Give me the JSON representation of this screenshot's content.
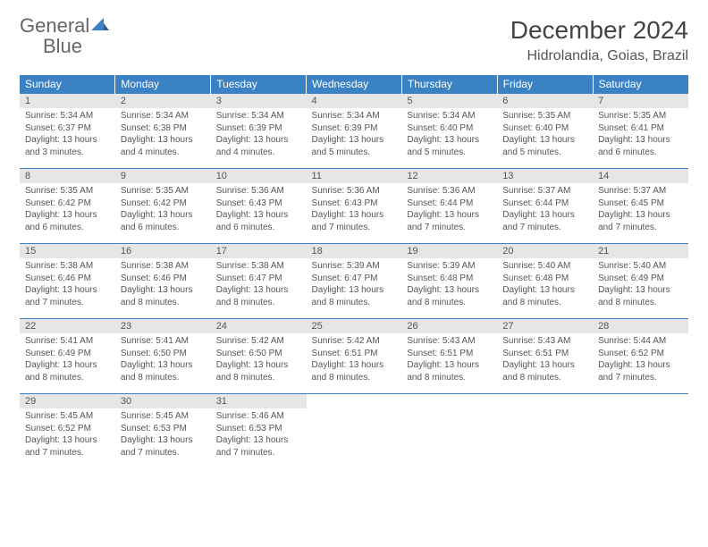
{
  "logo": {
    "text1": "General",
    "text2": "Blue"
  },
  "title": "December 2024",
  "location": "Hidrolandia, Goias, Brazil",
  "colors": {
    "header_bg": "#3b82c4",
    "header_text": "#ffffff",
    "daynum_bg": "#e6e6e6",
    "daynum_text": "#555555",
    "body_text": "#555555",
    "logo_gray": "#666666",
    "logo_blue": "#3b82c4",
    "row_border": "#3b82c4"
  },
  "dow": [
    "Sunday",
    "Monday",
    "Tuesday",
    "Wednesday",
    "Thursday",
    "Friday",
    "Saturday"
  ],
  "weeks": [
    [
      {
        "n": "1",
        "sr": "Sunrise: 5:34 AM",
        "ss": "Sunset: 6:37 PM",
        "d1": "Daylight: 13 hours",
        "d2": "and 3 minutes."
      },
      {
        "n": "2",
        "sr": "Sunrise: 5:34 AM",
        "ss": "Sunset: 6:38 PM",
        "d1": "Daylight: 13 hours",
        "d2": "and 4 minutes."
      },
      {
        "n": "3",
        "sr": "Sunrise: 5:34 AM",
        "ss": "Sunset: 6:39 PM",
        "d1": "Daylight: 13 hours",
        "d2": "and 4 minutes."
      },
      {
        "n": "4",
        "sr": "Sunrise: 5:34 AM",
        "ss": "Sunset: 6:39 PM",
        "d1": "Daylight: 13 hours",
        "d2": "and 5 minutes."
      },
      {
        "n": "5",
        "sr": "Sunrise: 5:34 AM",
        "ss": "Sunset: 6:40 PM",
        "d1": "Daylight: 13 hours",
        "d2": "and 5 minutes."
      },
      {
        "n": "6",
        "sr": "Sunrise: 5:35 AM",
        "ss": "Sunset: 6:40 PM",
        "d1": "Daylight: 13 hours",
        "d2": "and 5 minutes."
      },
      {
        "n": "7",
        "sr": "Sunrise: 5:35 AM",
        "ss": "Sunset: 6:41 PM",
        "d1": "Daylight: 13 hours",
        "d2": "and 6 minutes."
      }
    ],
    [
      {
        "n": "8",
        "sr": "Sunrise: 5:35 AM",
        "ss": "Sunset: 6:42 PM",
        "d1": "Daylight: 13 hours",
        "d2": "and 6 minutes."
      },
      {
        "n": "9",
        "sr": "Sunrise: 5:35 AM",
        "ss": "Sunset: 6:42 PM",
        "d1": "Daylight: 13 hours",
        "d2": "and 6 minutes."
      },
      {
        "n": "10",
        "sr": "Sunrise: 5:36 AM",
        "ss": "Sunset: 6:43 PM",
        "d1": "Daylight: 13 hours",
        "d2": "and 6 minutes."
      },
      {
        "n": "11",
        "sr": "Sunrise: 5:36 AM",
        "ss": "Sunset: 6:43 PM",
        "d1": "Daylight: 13 hours",
        "d2": "and 7 minutes."
      },
      {
        "n": "12",
        "sr": "Sunrise: 5:36 AM",
        "ss": "Sunset: 6:44 PM",
        "d1": "Daylight: 13 hours",
        "d2": "and 7 minutes."
      },
      {
        "n": "13",
        "sr": "Sunrise: 5:37 AM",
        "ss": "Sunset: 6:44 PM",
        "d1": "Daylight: 13 hours",
        "d2": "and 7 minutes."
      },
      {
        "n": "14",
        "sr": "Sunrise: 5:37 AM",
        "ss": "Sunset: 6:45 PM",
        "d1": "Daylight: 13 hours",
        "d2": "and 7 minutes."
      }
    ],
    [
      {
        "n": "15",
        "sr": "Sunrise: 5:38 AM",
        "ss": "Sunset: 6:46 PM",
        "d1": "Daylight: 13 hours",
        "d2": "and 7 minutes."
      },
      {
        "n": "16",
        "sr": "Sunrise: 5:38 AM",
        "ss": "Sunset: 6:46 PM",
        "d1": "Daylight: 13 hours",
        "d2": "and 8 minutes."
      },
      {
        "n": "17",
        "sr": "Sunrise: 5:38 AM",
        "ss": "Sunset: 6:47 PM",
        "d1": "Daylight: 13 hours",
        "d2": "and 8 minutes."
      },
      {
        "n": "18",
        "sr": "Sunrise: 5:39 AM",
        "ss": "Sunset: 6:47 PM",
        "d1": "Daylight: 13 hours",
        "d2": "and 8 minutes."
      },
      {
        "n": "19",
        "sr": "Sunrise: 5:39 AM",
        "ss": "Sunset: 6:48 PM",
        "d1": "Daylight: 13 hours",
        "d2": "and 8 minutes."
      },
      {
        "n": "20",
        "sr": "Sunrise: 5:40 AM",
        "ss": "Sunset: 6:48 PM",
        "d1": "Daylight: 13 hours",
        "d2": "and 8 minutes."
      },
      {
        "n": "21",
        "sr": "Sunrise: 5:40 AM",
        "ss": "Sunset: 6:49 PM",
        "d1": "Daylight: 13 hours",
        "d2": "and 8 minutes."
      }
    ],
    [
      {
        "n": "22",
        "sr": "Sunrise: 5:41 AM",
        "ss": "Sunset: 6:49 PM",
        "d1": "Daylight: 13 hours",
        "d2": "and 8 minutes."
      },
      {
        "n": "23",
        "sr": "Sunrise: 5:41 AM",
        "ss": "Sunset: 6:50 PM",
        "d1": "Daylight: 13 hours",
        "d2": "and 8 minutes."
      },
      {
        "n": "24",
        "sr": "Sunrise: 5:42 AM",
        "ss": "Sunset: 6:50 PM",
        "d1": "Daylight: 13 hours",
        "d2": "and 8 minutes."
      },
      {
        "n": "25",
        "sr": "Sunrise: 5:42 AM",
        "ss": "Sunset: 6:51 PM",
        "d1": "Daylight: 13 hours",
        "d2": "and 8 minutes."
      },
      {
        "n": "26",
        "sr": "Sunrise: 5:43 AM",
        "ss": "Sunset: 6:51 PM",
        "d1": "Daylight: 13 hours",
        "d2": "and 8 minutes."
      },
      {
        "n": "27",
        "sr": "Sunrise: 5:43 AM",
        "ss": "Sunset: 6:51 PM",
        "d1": "Daylight: 13 hours",
        "d2": "and 8 minutes."
      },
      {
        "n": "28",
        "sr": "Sunrise: 5:44 AM",
        "ss": "Sunset: 6:52 PM",
        "d1": "Daylight: 13 hours",
        "d2": "and 7 minutes."
      }
    ],
    [
      {
        "n": "29",
        "sr": "Sunrise: 5:45 AM",
        "ss": "Sunset: 6:52 PM",
        "d1": "Daylight: 13 hours",
        "d2": "and 7 minutes."
      },
      {
        "n": "30",
        "sr": "Sunrise: 5:45 AM",
        "ss": "Sunset: 6:53 PM",
        "d1": "Daylight: 13 hours",
        "d2": "and 7 minutes."
      },
      {
        "n": "31",
        "sr": "Sunrise: 5:46 AM",
        "ss": "Sunset: 6:53 PM",
        "d1": "Daylight: 13 hours",
        "d2": "and 7 minutes."
      },
      null,
      null,
      null,
      null
    ]
  ]
}
